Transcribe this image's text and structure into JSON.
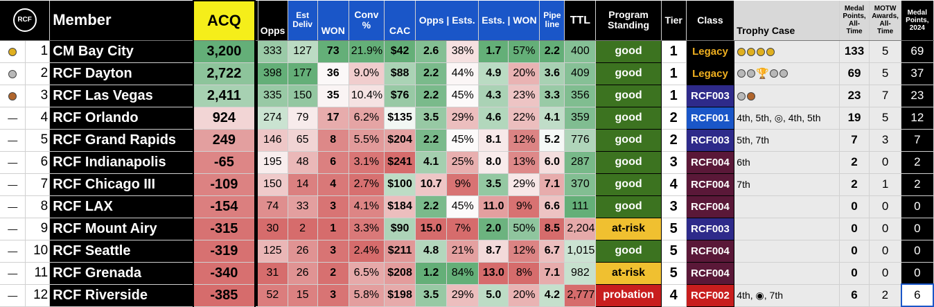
{
  "header": {
    "logo": "RCF",
    "member": "Member",
    "acq": "ACQ",
    "opps": "Opps",
    "est_deliv": "Est Deliv",
    "won": "WON",
    "conv": "Conv %",
    "cac": "CAC",
    "opps_ests": "Opps | Ests.",
    "ests_won": "Ests. | WON",
    "pipeline": "Pipe line",
    "ttl": "TTL",
    "program_standing": "Program Standing",
    "tier": "Tier",
    "class": "Class",
    "trophy_case": "Trophy Case",
    "medal_points_all_time": "Medal Points, All-Time",
    "motw_awards": "MOTW Awards, All-Time",
    "medal_points_2024": "Medal Points, 2024"
  },
  "colors": {
    "good": "#3c7320",
    "at_risk": "#f0c030",
    "probation": "#c81e1e",
    "legacy_bg": "#000",
    "legacy_fg": "#f0b020",
    "RCF001": "#1a56c8",
    "RCF002": "#c81e1e",
    "RCF003": "#2e2a8a",
    "RCF004": "#5a1838"
  },
  "rows": [
    {
      "medal": "gold",
      "rank": "1",
      "name": "CM Bay City",
      "acq": "3,200",
      "opps": "333",
      "est_deliv": "127",
      "won": "73",
      "conv": "21.9%",
      "cac": "$42",
      "oe_a": "2.6",
      "oe_b": "38%",
      "ew_a": "1.7",
      "ew_b": "57%",
      "pipe": "2.2",
      "ttl": "400",
      "standing": "good",
      "tier": "1",
      "cls": "Legacy",
      "trophy": "g,g,g,g",
      "trophy_text": "",
      "mp": "133",
      "motw": "5",
      "mp24": "69"
    },
    {
      "medal": "silver",
      "rank": "2",
      "name": "RCF Dayton",
      "acq": "2,722",
      "opps": "398",
      "est_deliv": "177",
      "won": "36",
      "conv": "9.0%",
      "cac": "$88",
      "oe_a": "2.2",
      "oe_b": "44%",
      "ew_a": "4.9",
      "ew_b": "20%",
      "pipe": "3.6",
      "ttl": "409",
      "standing": "good",
      "tier": "1",
      "cls": "Legacy",
      "trophy": "s,s,t,s,s",
      "trophy_text": "",
      "mp": "69",
      "motw": "5",
      "mp24": "37"
    },
    {
      "medal": "bronze",
      "rank": "3",
      "name": "RCF Las Vegas",
      "acq": "2,411",
      "opps": "335",
      "est_deliv": "150",
      "won": "35",
      "conv": "10.4%",
      "cac": "$76",
      "oe_a": "2.2",
      "oe_b": "45%",
      "ew_a": "4.3",
      "ew_b": "23%",
      "pipe": "3.3",
      "ttl": "356",
      "standing": "good",
      "tier": "1",
      "cls": "RCF003",
      "trophy": "s,b",
      "trophy_text": "",
      "mp": "23",
      "motw": "7",
      "mp24": "23"
    },
    {
      "medal": "dash",
      "rank": "4",
      "name": "RCF Orlando",
      "acq": "924",
      "opps": "274",
      "est_deliv": "79",
      "won": "17",
      "conv": "6.2%",
      "cac": "$135",
      "oe_a": "3.5",
      "oe_b": "29%",
      "ew_a": "4.6",
      "ew_b": "22%",
      "pipe": "4.1",
      "ttl": "359",
      "standing": "good",
      "tier": "2",
      "cls": "RCF001",
      "trophy": "",
      "trophy_text": "4th, 5th, ◎, 4th, 5th",
      "mp": "19",
      "motw": "5",
      "mp24": "12"
    },
    {
      "medal": "dash",
      "rank": "5",
      "name": "RCF Grand Rapids",
      "acq": "249",
      "opps": "146",
      "est_deliv": "65",
      "won": "8",
      "conv": "5.5%",
      "cac": "$204",
      "oe_a": "2.2",
      "oe_b": "45%",
      "ew_a": "8.1",
      "ew_b": "12%",
      "pipe": "5.2",
      "ttl": "776",
      "standing": "good",
      "tier": "2",
      "cls": "RCF003",
      "trophy": "",
      "trophy_text": "5th, 7th",
      "mp": "7",
      "motw": "3",
      "mp24": "7"
    },
    {
      "medal": "dash",
      "rank": "6",
      "name": "RCF Indianapolis",
      "acq": "-65",
      "opps": "195",
      "est_deliv": "48",
      "won": "6",
      "conv": "3.1%",
      "cac": "$241",
      "oe_a": "4.1",
      "oe_b": "25%",
      "ew_a": "8.0",
      "ew_b": "13%",
      "pipe": "6.0",
      "ttl": "287",
      "standing": "good",
      "tier": "3",
      "cls": "RCF004",
      "trophy": "",
      "trophy_text": "6th",
      "mp": "2",
      "motw": "0",
      "mp24": "2"
    },
    {
      "medal": "dash",
      "rank": "7",
      "name": "RCF Chicago III",
      "acq": "-109",
      "opps": "150",
      "est_deliv": "14",
      "won": "4",
      "conv": "2.7%",
      "cac": "$100",
      "oe_a": "10.7",
      "oe_b": "9%",
      "ew_a": "3.5",
      "ew_b": "29%",
      "pipe": "7.1",
      "ttl": "370",
      "standing": "good",
      "tier": "4",
      "cls": "RCF004",
      "trophy": "",
      "trophy_text": "7th",
      "mp": "2",
      "motw": "1",
      "mp24": "2"
    },
    {
      "medal": "dash",
      "rank": "8",
      "name": "RCF LAX",
      "acq": "-154",
      "opps": "74",
      "est_deliv": "33",
      "won": "3",
      "conv": "4.1%",
      "cac": "$184",
      "oe_a": "2.2",
      "oe_b": "45%",
      "ew_a": "11.0",
      "ew_b": "9%",
      "pipe": "6.6",
      "ttl": "111",
      "standing": "good",
      "tier": "3",
      "cls": "RCF004",
      "trophy": "",
      "trophy_text": "",
      "mp": "0",
      "motw": "0",
      "mp24": "0"
    },
    {
      "medal": "dash",
      "rank": "9",
      "name": "RCF Mount Airy",
      "acq": "-315",
      "opps": "30",
      "est_deliv": "2",
      "won": "1",
      "conv": "3.3%",
      "cac": "$90",
      "oe_a": "15.0",
      "oe_b": "7%",
      "ew_a": "2.0",
      "ew_b": "50%",
      "pipe": "8.5",
      "ttl": "2,204",
      "standing": "at-risk",
      "tier": "5",
      "cls": "RCF003",
      "trophy": "",
      "trophy_text": "",
      "mp": "0",
      "motw": "0",
      "mp24": "0"
    },
    {
      "medal": "dash",
      "rank": "10",
      "name": "RCF Seattle",
      "acq": "-319",
      "opps": "125",
      "est_deliv": "26",
      "won": "3",
      "conv": "2.4%",
      "cac": "$211",
      "oe_a": "4.8",
      "oe_b": "21%",
      "ew_a": "8.7",
      "ew_b": "12%",
      "pipe": "6.7",
      "ttl": "1,015",
      "standing": "good",
      "tier": "5",
      "cls": "RCF004",
      "trophy": "",
      "trophy_text": "",
      "mp": "0",
      "motw": "0",
      "mp24": "0"
    },
    {
      "medal": "dash",
      "rank": "11",
      "name": "RCF Grenada",
      "acq": "-340",
      "opps": "31",
      "est_deliv": "26",
      "won": "2",
      "conv": "6.5%",
      "cac": "$208",
      "oe_a": "1.2",
      "oe_b": "84%",
      "ew_a": "13.0",
      "ew_b": "8%",
      "pipe": "7.1",
      "ttl": "982",
      "standing": "at-risk",
      "tier": "5",
      "cls": "RCF004",
      "trophy": "",
      "trophy_text": "",
      "mp": "0",
      "motw": "0",
      "mp24": "0"
    },
    {
      "medal": "dash",
      "rank": "12",
      "name": "RCF Riverside",
      "acq": "-385",
      "opps": "52",
      "est_deliv": "15",
      "won": "3",
      "conv": "5.8%",
      "cac": "$198",
      "oe_a": "3.5",
      "oe_b": "29%",
      "ew_a": "5.0",
      "ew_b": "20%",
      "pipe": "4.2",
      "ttl": "2,777",
      "standing": "probation",
      "tier": "4",
      "cls": "RCF002",
      "trophy": "",
      "trophy_text": "4th, ◉, 7th",
      "mp": "6",
      "motw": "2",
      "mp24": "6"
    }
  ]
}
